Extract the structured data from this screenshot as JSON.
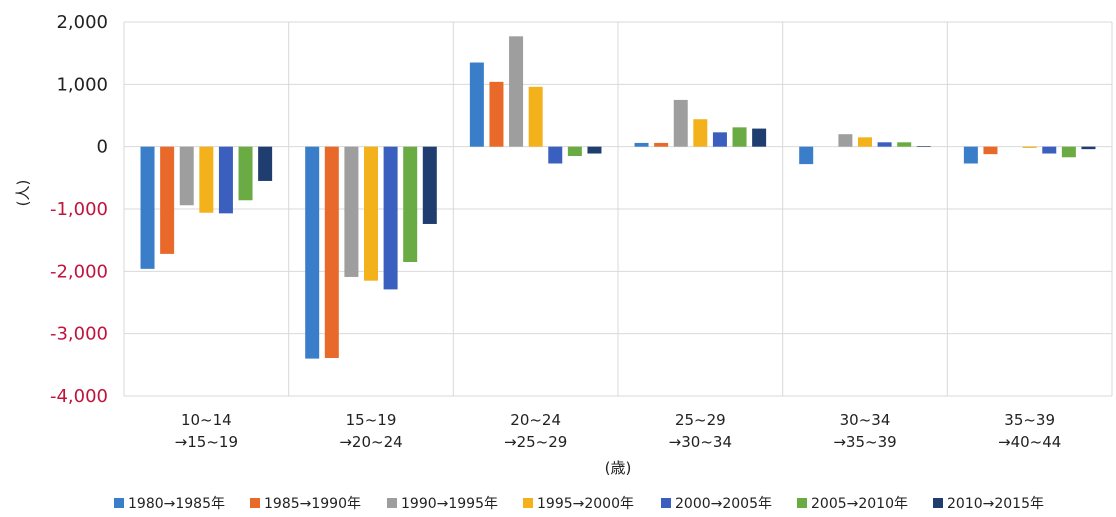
{
  "chart_data": {
    "type": "bar",
    "title": "",
    "xlabel": "(歳)",
    "ylabel": "(人)",
    "ylim": [
      -4000,
      2000
    ],
    "yticks": [
      2000,
      1000,
      0,
      -1000,
      -2000,
      -3000,
      -4000
    ],
    "ytick_labels": [
      "2,000",
      "1,000",
      "0",
      "-1,000",
      "-2,000",
      "-3,000",
      "-4,000"
    ],
    "negative_tick_color": "#c0143c",
    "positive_tick_color": "#222222",
    "grid": true,
    "legend_position": "bottom",
    "categories": [
      [
        "10~14",
        "→15~19"
      ],
      [
        "15~19",
        "→20~24"
      ],
      [
        "20~24",
        "→25~29"
      ],
      [
        "25~29",
        "→30~34"
      ],
      [
        "30~34",
        "→35~39"
      ],
      [
        "35~39",
        "→40~44"
      ]
    ],
    "series": [
      {
        "name": "1980→1985年",
        "color": "#3a7dc9",
        "values": [
          -1960,
          -3400,
          1350,
          60,
          -280,
          -270
        ]
      },
      {
        "name": "1985→1990年",
        "color": "#e8692a",
        "values": [
          -1720,
          -3390,
          1040,
          60,
          0,
          -120
        ]
      },
      {
        "name": "1990→1995年",
        "color": "#9e9e9e",
        "values": [
          -940,
          -2090,
          1770,
          750,
          200,
          0
        ]
      },
      {
        "name": "1995→2000年",
        "color": "#f3b21b",
        "values": [
          -1060,
          -2150,
          960,
          440,
          150,
          -20
        ]
      },
      {
        "name": "2000→2005年",
        "color": "#3b5fbf",
        "values": [
          -1070,
          -2290,
          -270,
          230,
          70,
          -110
        ]
      },
      {
        "name": "2005→2010年",
        "color": "#6aab43",
        "values": [
          -860,
          -1850,
          -150,
          310,
          70,
          -170
        ]
      },
      {
        "name": "2010→2015年",
        "color": "#1f3d6e",
        "values": [
          -550,
          -1240,
          -110,
          290,
          10,
          -40
        ]
      }
    ]
  }
}
